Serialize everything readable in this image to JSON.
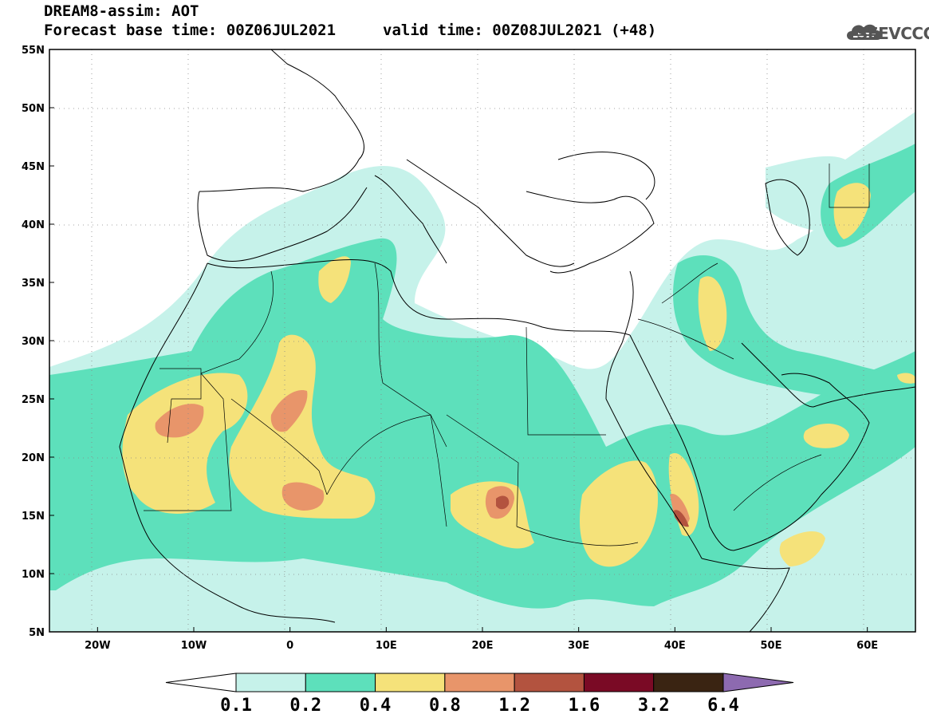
{
  "title": {
    "line1": "DREAM8-assim: AOT",
    "line2": "Forecast base time: 00Z06JUL2021",
    "valid": "valid time: 00Z08JUL2021 (+48)"
  },
  "logo": {
    "text": "SEEVCCC",
    "icon": "cloud-icon"
  },
  "map": {
    "lat_labels": [
      "55N",
      "50N",
      "45N",
      "40N",
      "35N",
      "30N",
      "25N",
      "20N",
      "15N",
      "10N",
      "5N"
    ],
    "lon_labels": [
      "20W",
      "10W",
      "0",
      "10E",
      "20E",
      "30E",
      "40E",
      "50E",
      "60E"
    ],
    "lat_range": [
      5,
      55
    ],
    "lon_range": [
      -25,
      65
    ],
    "field": "AOT"
  },
  "legend": {
    "labels": [
      "0.1",
      "0.2",
      "0.4",
      "0.8",
      "1.2",
      "1.6",
      "3.2",
      "6.4"
    ],
    "colors": [
      "#ffffff",
      "#c6f2ea",
      "#5de0bb",
      "#f5e27a",
      "#e8956a",
      "#b3533f",
      "#7a0a25",
      "#3a2412",
      "#8d6ab0"
    ]
  },
  "colors": {
    "c1": "#c6f2ea",
    "c2": "#5de0bb",
    "c3": "#f5e27a",
    "c4": "#e8956a",
    "c5": "#b3533f",
    "c6": "#7a0a25"
  }
}
